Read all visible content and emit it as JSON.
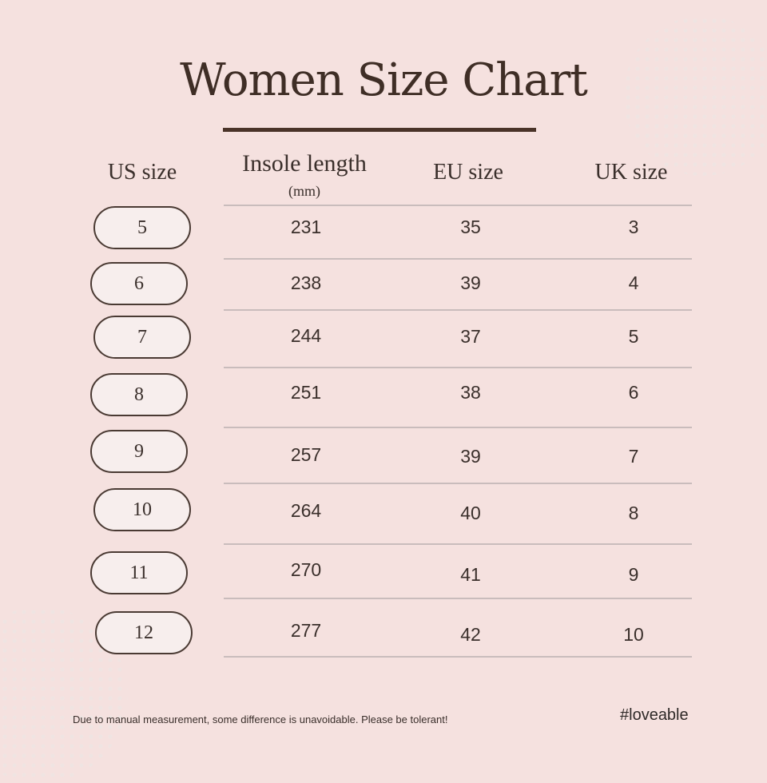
{
  "title": "Women Size Chart",
  "headers": {
    "us": "US size",
    "insole": "Insole length",
    "insole_unit": "(mm)",
    "eu": "EU size",
    "uk": "UK size"
  },
  "rows": [
    {
      "us": "5",
      "insole": "231",
      "eu": "35",
      "uk": "3"
    },
    {
      "us": "6",
      "insole": "238",
      "eu": "39",
      "uk": "4"
    },
    {
      "us": "7",
      "insole": "244",
      "eu": "37",
      "uk": "5"
    },
    {
      "us": "8",
      "insole": "251",
      "eu": "38",
      "uk": "6"
    },
    {
      "us": "9",
      "insole": "257",
      "eu": "39",
      "uk": "7"
    },
    {
      "us": "10",
      "insole": "264",
      "eu": "40",
      "uk": "8"
    },
    {
      "us": "11",
      "insole": "270",
      "eu": "41",
      "uk": "9"
    },
    {
      "us": "12",
      "insole": "277",
      "eu": "42",
      "uk": "10"
    }
  ],
  "footer_note": "Due to manual measurement, some difference is unavoidable. Please be tolerant!",
  "hashtag": "#loveable",
  "colors": {
    "background": "#f5e1df",
    "text": "#3a2f2b",
    "accent_bar": "#4a3328"
  }
}
